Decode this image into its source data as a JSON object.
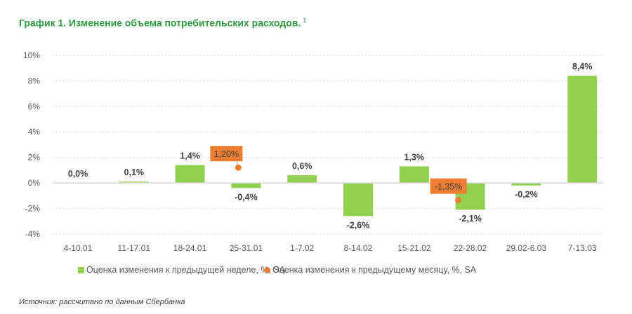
{
  "title": "График 1. Изменение объема потребительских расходов.",
  "title_footnote": "1",
  "source": "Источник: рассчитано по данным Сбербанка",
  "chart_data": {
    "type": "bar",
    "categories": [
      "4-10.01",
      "11-17.01",
      "18-24.01",
      "25-31.01",
      "1-7.02",
      "8-14.02",
      "15-21.02",
      "22-28.02",
      "29.02-6.03",
      "7-13.03"
    ],
    "series": [
      {
        "name": "Оценка изменения к предыдущей неделе, %, SA",
        "kind": "bar",
        "color": "#92d050",
        "values": [
          0.0,
          0.1,
          1.4,
          -0.4,
          0.6,
          -2.6,
          1.3,
          -2.1,
          -0.2,
          8.4
        ],
        "labels": [
          "0,0%",
          "0,1%",
          "1,4%",
          "-0,4%",
          "0,6%",
          "-2,6%",
          "1,3%",
          "-2,1%",
          "-0,2%",
          "8,4%"
        ]
      },
      {
        "name": "Оценка изменения к предыдущему месяцу, %, SA",
        "kind": "point",
        "color": "#ed7d31",
        "values": [
          null,
          null,
          null,
          1.2,
          null,
          null,
          null,
          -1.35,
          null,
          null
        ],
        "labels": [
          null,
          null,
          null,
          "1,20%",
          null,
          null,
          null,
          "-1,35%",
          null,
          null
        ]
      }
    ],
    "y_ticks": [
      "10%",
      "8%",
      "6%",
      "4%",
      "2%",
      "0%",
      "-2%",
      "-4%"
    ],
    "y_tick_values": [
      10,
      8,
      6,
      4,
      2,
      0,
      -2,
      -4
    ],
    "ylim": [
      -4,
      10
    ],
    "grid": "dotted horizontal",
    "legend": "bottom",
    "xlabel": "",
    "ylabel": ""
  }
}
